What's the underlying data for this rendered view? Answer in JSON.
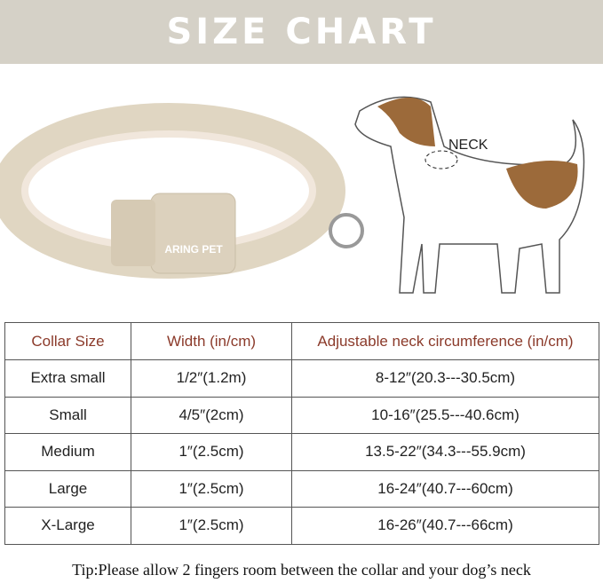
{
  "title": "SIZE CHART",
  "brand_label": "ARING PET",
  "neck_label": "NECK",
  "colors": {
    "banner": "#d5d1c7",
    "header_text": "#8b3a2a"
  },
  "table": {
    "headers": [
      "Collar Size",
      "Width (in/cm)",
      "Adjustable neck circumference (in/cm)"
    ],
    "rows": [
      [
        "Extra small",
        "1/2″(1.2m)",
        "8-12″(20.3---30.5cm)"
      ],
      [
        "Small",
        "4/5″(2cm)",
        "10-16″(25.5---40.6cm)"
      ],
      [
        "Medium",
        "1″(2.5cm)",
        "13.5-22″(34.3---55.9cm)"
      ],
      [
        "Large",
        "1″(2.5cm)",
        "16-24″(40.7---60cm)"
      ],
      [
        "X-Large",
        "1″(2.5cm)",
        "16-26″(40.7---66cm)"
      ]
    ]
  },
  "tip": "Tip:Please allow 2 fingers room between the collar and your dog’s neck"
}
